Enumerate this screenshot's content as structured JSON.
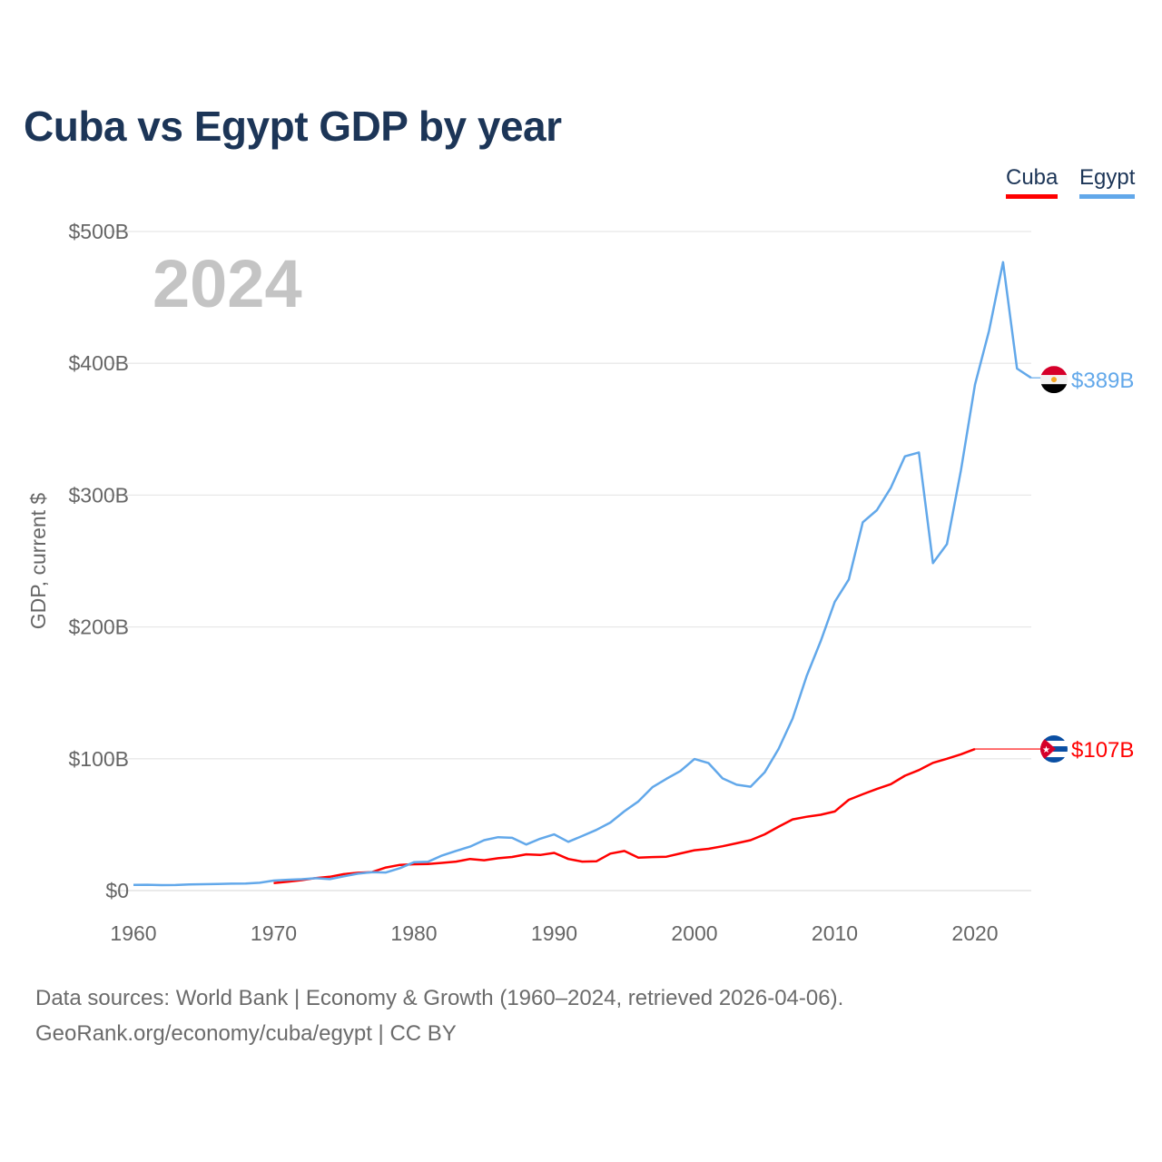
{
  "chart_data": {
    "type": "line",
    "title": "Cuba vs Egypt GDP by year",
    "ylabel": "GDP, current $",
    "xlabel": "",
    "year_watermark": "2024",
    "xlim": [
      1960,
      2024
    ],
    "ylim": [
      0,
      500
    ],
    "x_ticks": [
      "1960",
      "1970",
      "1980",
      "1990",
      "2000",
      "2010",
      "2020"
    ],
    "y_ticks": [
      "$0",
      "$100B",
      "$200B",
      "$300B",
      "$400B",
      "$500B"
    ],
    "y_tick_values": [
      0,
      100,
      200,
      300,
      400,
      500
    ],
    "x_tick_values": [
      1960,
      1970,
      1980,
      1990,
      2000,
      2010,
      2020
    ],
    "grid": true,
    "legend_position": "top-right",
    "units": "billions USD",
    "series": [
      {
        "name": "Cuba",
        "color": "#ff0000",
        "end_label": "$107B",
        "start_year": 1970,
        "values": [
          5.7,
          6.7,
          7.9,
          9.5,
          10.5,
          12.5,
          13.5,
          14.0,
          17.5,
          19.5,
          20.0,
          20.2,
          21.0,
          22.0,
          24.0,
          23.0,
          24.5,
          25.5,
          27.5,
          27.0,
          28.6,
          24.0,
          22.0,
          22.2,
          28.0,
          30.0,
          25.0,
          25.4,
          25.7,
          28.2,
          30.6,
          31.7,
          33.6,
          35.9,
          38.2,
          42.6,
          48.5,
          54.0,
          56.0,
          57.5,
          60.0,
          68.9,
          73.1,
          77.1,
          80.7,
          87.1,
          91.4,
          96.9,
          100.0,
          103.4,
          107.4
        ],
        "projected_flat_to": 2024,
        "projected_value": 107
      },
      {
        "name": "Egypt",
        "color": "#62a8ea",
        "end_label": "$389B",
        "start_year": 1960,
        "values": [
          4.3,
          4.4,
          4.1,
          4.2,
          4.6,
          4.8,
          5.0,
          5.2,
          5.4,
          5.9,
          7.6,
          8.2,
          8.6,
          9.4,
          8.7,
          10.8,
          12.8,
          13.9,
          13.7,
          17.0,
          21.5,
          21.8,
          26.6,
          30.1,
          33.3,
          38.2,
          40.5,
          40.0,
          34.9,
          39.3,
          42.6,
          37.0,
          41.4,
          46.0,
          51.6,
          60.2,
          67.6,
          78.4,
          84.8,
          90.7,
          99.8,
          96.7,
          85.1,
          80.3,
          78.8,
          89.7,
          107.5,
          130.5,
          162.8,
          189.1,
          219.0,
          236.0,
          279.4,
          288.6,
          305.6,
          329.4,
          332.4,
          248.4,
          262.8,
          318.7,
          383.8,
          424.7,
          476.7,
          396.0,
          389.0
        ]
      }
    ]
  },
  "source_line1": "Data sources: World Bank | Economy & Growth (1960–2024, retrieved 2026-04-06).",
  "source_line2": "GeoRank.org/economy/cuba/egypt | CC BY"
}
